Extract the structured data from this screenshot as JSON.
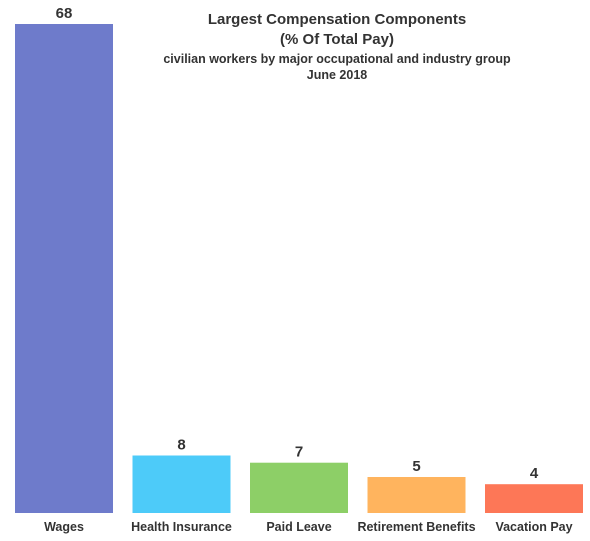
{
  "chart_data": {
    "type": "bar",
    "title": "Largest Compensation Components",
    "title_line2": "(% Of Total Pay)",
    "subtitle": "civilian workers by major occupational and industry group",
    "subtitle_line2": "June 2018",
    "xlabel": "",
    "ylabel": "",
    "ylim": [
      0,
      68
    ],
    "grid": false,
    "legend": "none",
    "categories": [
      "Wages",
      "Health Insurance",
      "Paid Leave",
      "Retirement Benefits",
      "Vacation Pay"
    ],
    "values": [
      68,
      8,
      7,
      5,
      4
    ],
    "data_labels": [
      "68",
      "8",
      "7",
      "5",
      "4"
    ],
    "colors": [
      "#6e7bcb",
      "#4dcbf9",
      "#8dcf67",
      "#ffb45e",
      "#fd7757"
    ]
  }
}
